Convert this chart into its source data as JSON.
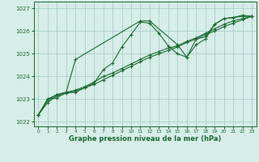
{
  "title": "",
  "xlabel": "Graphe pression niveau de la mer (hPa)",
  "bg_color": "#d6ede8",
  "grid_color": "#aacfca",
  "line_color": "#1a6b30",
  "marker": "+",
  "ylim": [
    1021.8,
    1027.3
  ],
  "xlim": [
    -0.5,
    23.5
  ],
  "yticks": [
    1022,
    1023,
    1024,
    1025,
    1026,
    1027
  ],
  "xticks": [
    0,
    1,
    2,
    3,
    4,
    5,
    6,
    7,
    8,
    9,
    10,
    11,
    12,
    13,
    14,
    15,
    16,
    17,
    18,
    19,
    20,
    21,
    22,
    23
  ],
  "line1_x": [
    0,
    1,
    2,
    3,
    4,
    5,
    6,
    7,
    8,
    9,
    10,
    11,
    12,
    13,
    14,
    15,
    16,
    17,
    18,
    19,
    20,
    21,
    22,
    23
  ],
  "line1_y": [
    1022.3,
    1023.0,
    1023.05,
    1023.3,
    1023.3,
    1023.5,
    1023.7,
    1024.3,
    1024.6,
    1025.3,
    1025.85,
    1026.4,
    1026.35,
    1025.9,
    1025.35,
    1025.0,
    1024.85,
    1025.4,
    1025.65,
    1026.3,
    1026.55,
    1026.6,
    1026.7,
    1026.65
  ],
  "line2_x": [
    0,
    1,
    2,
    3,
    4,
    5,
    6,
    7,
    8,
    9,
    10,
    11,
    12,
    13,
    14,
    15,
    16,
    17,
    18,
    19,
    20,
    21,
    22,
    23
  ],
  "line2_y": [
    1022.3,
    1022.95,
    1023.2,
    1023.3,
    1023.4,
    1023.55,
    1023.75,
    1024.0,
    1024.15,
    1024.35,
    1024.55,
    1024.75,
    1024.95,
    1025.1,
    1025.25,
    1025.35,
    1025.55,
    1025.7,
    1025.9,
    1026.1,
    1026.3,
    1026.45,
    1026.55,
    1026.65
  ],
  "line3_x": [
    0,
    1,
    2,
    3,
    4,
    5,
    6,
    7,
    8,
    9,
    10,
    11,
    12,
    13,
    14,
    15,
    16,
    17,
    18,
    19,
    20,
    21,
    22,
    23
  ],
  "line3_y": [
    1022.3,
    1022.85,
    1023.15,
    1023.25,
    1023.35,
    1023.5,
    1023.65,
    1023.85,
    1024.05,
    1024.25,
    1024.45,
    1024.65,
    1024.85,
    1025.0,
    1025.15,
    1025.3,
    1025.5,
    1025.65,
    1025.85,
    1026.0,
    1026.2,
    1026.35,
    1026.5,
    1026.65
  ],
  "line4_x": [
    0,
    1,
    2,
    3,
    4,
    11,
    12,
    15,
    16,
    17,
    18,
    19,
    20,
    21,
    22,
    23
  ],
  "line4_y": [
    1022.3,
    1023.0,
    1023.2,
    1023.3,
    1024.75,
    1026.45,
    1026.45,
    1025.4,
    1024.85,
    1025.65,
    1025.75,
    1026.3,
    1026.55,
    1026.6,
    1026.65,
    1026.65
  ]
}
